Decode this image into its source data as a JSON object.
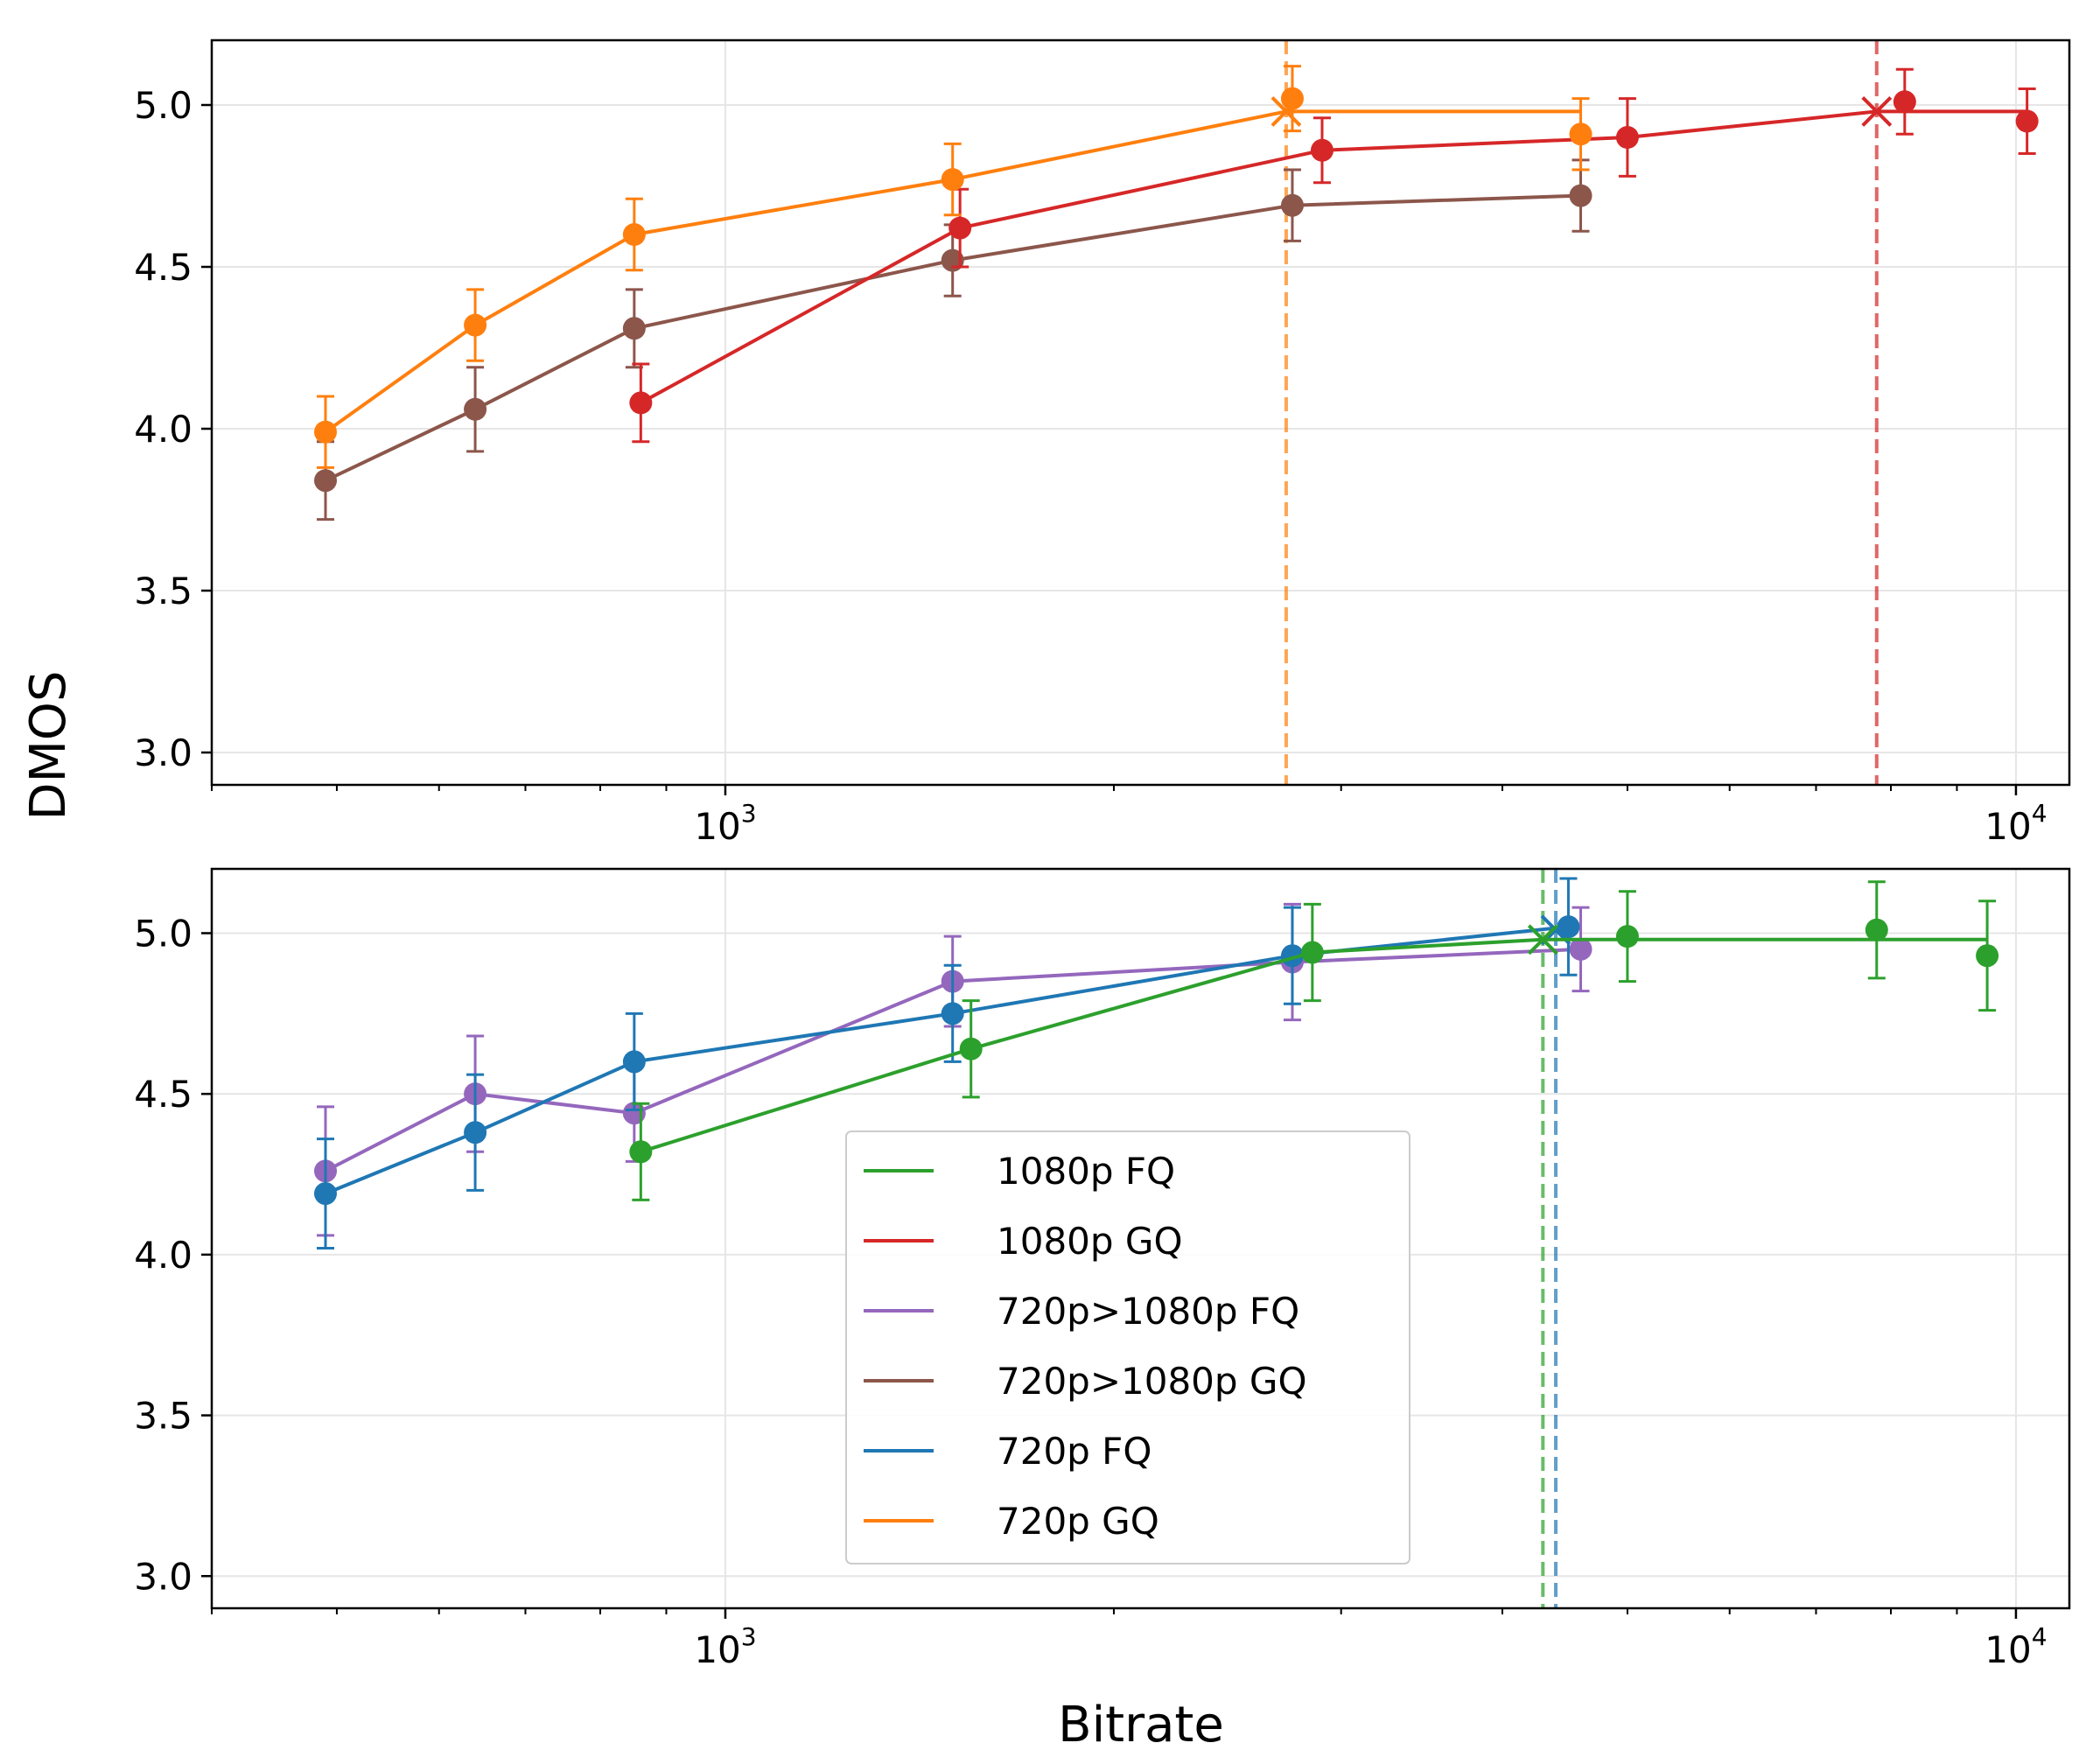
{
  "chart_data": {
    "type": "line",
    "ylabel": "DMOS",
    "xlabel": "Bitrate",
    "x_scale": "log",
    "x_tick_labels": [
      "10",
      "10"
    ],
    "x_tick_exponents": [
      "3",
      "4"
    ],
    "y_tick_labels": [
      "3.0",
      "3.5",
      "4.0",
      "4.5",
      "5.0"
    ],
    "xlim": [
      400,
      11000
    ],
    "ylim": [
      2.9,
      5.2
    ],
    "grid": true,
    "legend": {
      "placement": "lower-center of bottom panel",
      "entries": [
        "1080p FQ",
        "1080p GQ",
        "720p>1080p FQ",
        "720p>1080p GQ",
        "720p FQ",
        "720p GQ"
      ],
      "colors": [
        "#2ca02c",
        "#d62728",
        "#9467bd",
        "#8c564b",
        "#1f77b4",
        "#ff7f0e"
      ]
    },
    "panels": [
      {
        "series": [
          {
            "legend_index": 3,
            "color": "#8c564b",
            "points": [
              {
                "x": 490,
                "y": 3.84,
                "err": 0.12
              },
              {
                "x": 640,
                "y": 4.06,
                "err": 0.13
              },
              {
                "x": 850,
                "y": 4.31,
                "err": 0.12
              },
              {
                "x": 1500,
                "y": 4.52,
                "err": 0.11
              },
              {
                "x": 2750,
                "y": 4.69,
                "err": 0.11
              },
              {
                "x": 4600,
                "y": 4.72,
                "err": 0.11
              }
            ]
          },
          {
            "legend_index": 1,
            "color": "#d62728",
            "points": [
              {
                "x": 860,
                "y": 4.08,
                "err": 0.12
              },
              {
                "x": 1520,
                "y": 4.62,
                "err": 0.12
              },
              {
                "x": 2900,
                "y": 4.86,
                "err": 0.1
              },
              {
                "x": 5000,
                "y": 4.9,
                "err": 0.12
              },
              {
                "x": 8200,
                "y": 5.01,
                "err": 0.1
              },
              {
                "x": 10200,
                "y": 4.95,
                "err": 0.1
              }
            ],
            "plateau": {
              "x_start": 7800,
              "x_end": 10200,
              "y": 4.98
            },
            "knee": {
              "x": 7800,
              "y": 4.98
            }
          },
          {
            "legend_index": 5,
            "color": "#ff7f0e",
            "points": [
              {
                "x": 490,
                "y": 3.99,
                "err": 0.11
              },
              {
                "x": 640,
                "y": 4.32,
                "err": 0.11
              },
              {
                "x": 850,
                "y": 4.6,
                "err": 0.11
              },
              {
                "x": 1500,
                "y": 4.77,
                "err": 0.11
              },
              {
                "x": 2750,
                "y": 5.02,
                "err": 0.1
              },
              {
                "x": 4600,
                "y": 4.91,
                "err": 0.11
              }
            ],
            "plateau": {
              "x_start": 2720,
              "x_end": 4600,
              "y": 4.98
            },
            "knee": {
              "x": 2720,
              "y": 4.98
            }
          }
        ]
      },
      {
        "series": [
          {
            "legend_index": 2,
            "color": "#9467bd",
            "points": [
              {
                "x": 490,
                "y": 4.26,
                "err": 0.2
              },
              {
                "x": 640,
                "y": 4.5,
                "err": 0.18
              },
              {
                "x": 850,
                "y": 4.44,
                "err": 0.15
              },
              {
                "x": 1500,
                "y": 4.85,
                "err": 0.14
              },
              {
                "x": 2750,
                "y": 4.91,
                "err": 0.18
              },
              {
                "x": 4600,
                "y": 4.95,
                "err": 0.13
              }
            ]
          },
          {
            "legend_index": 4,
            "color": "#1f77b4",
            "points": [
              {
                "x": 490,
                "y": 4.19,
                "err": 0.17
              },
              {
                "x": 640,
                "y": 4.38,
                "err": 0.18
              },
              {
                "x": 850,
                "y": 4.6,
                "err": 0.15
              },
              {
                "x": 1500,
                "y": 4.75,
                "err": 0.15
              },
              {
                "x": 2750,
                "y": 4.93,
                "err": 0.15
              },
              {
                "x": 4500,
                "y": 5.02,
                "err": 0.15
              }
            ],
            "knee": {
              "x": 4400,
              "y": 5.01
            }
          },
          {
            "legend_index": 0,
            "color": "#2ca02c",
            "points": [
              {
                "x": 860,
                "y": 4.32,
                "err": 0.15
              },
              {
                "x": 1550,
                "y": 4.64,
                "err": 0.15
              },
              {
                "x": 2850,
                "y": 4.94,
                "err": 0.15
              },
              {
                "x": 5000,
                "y": 4.99,
                "err": 0.14
              },
              {
                "x": 7800,
                "y": 5.01,
                "err": 0.15
              },
              {
                "x": 9500,
                "y": 4.93,
                "err": 0.17
              }
            ],
            "plateau": {
              "x_start": 4300,
              "x_end": 9500,
              "y": 4.98
            },
            "knee": {
              "x": 4300,
              "y": 4.98
            }
          }
        ]
      }
    ]
  }
}
